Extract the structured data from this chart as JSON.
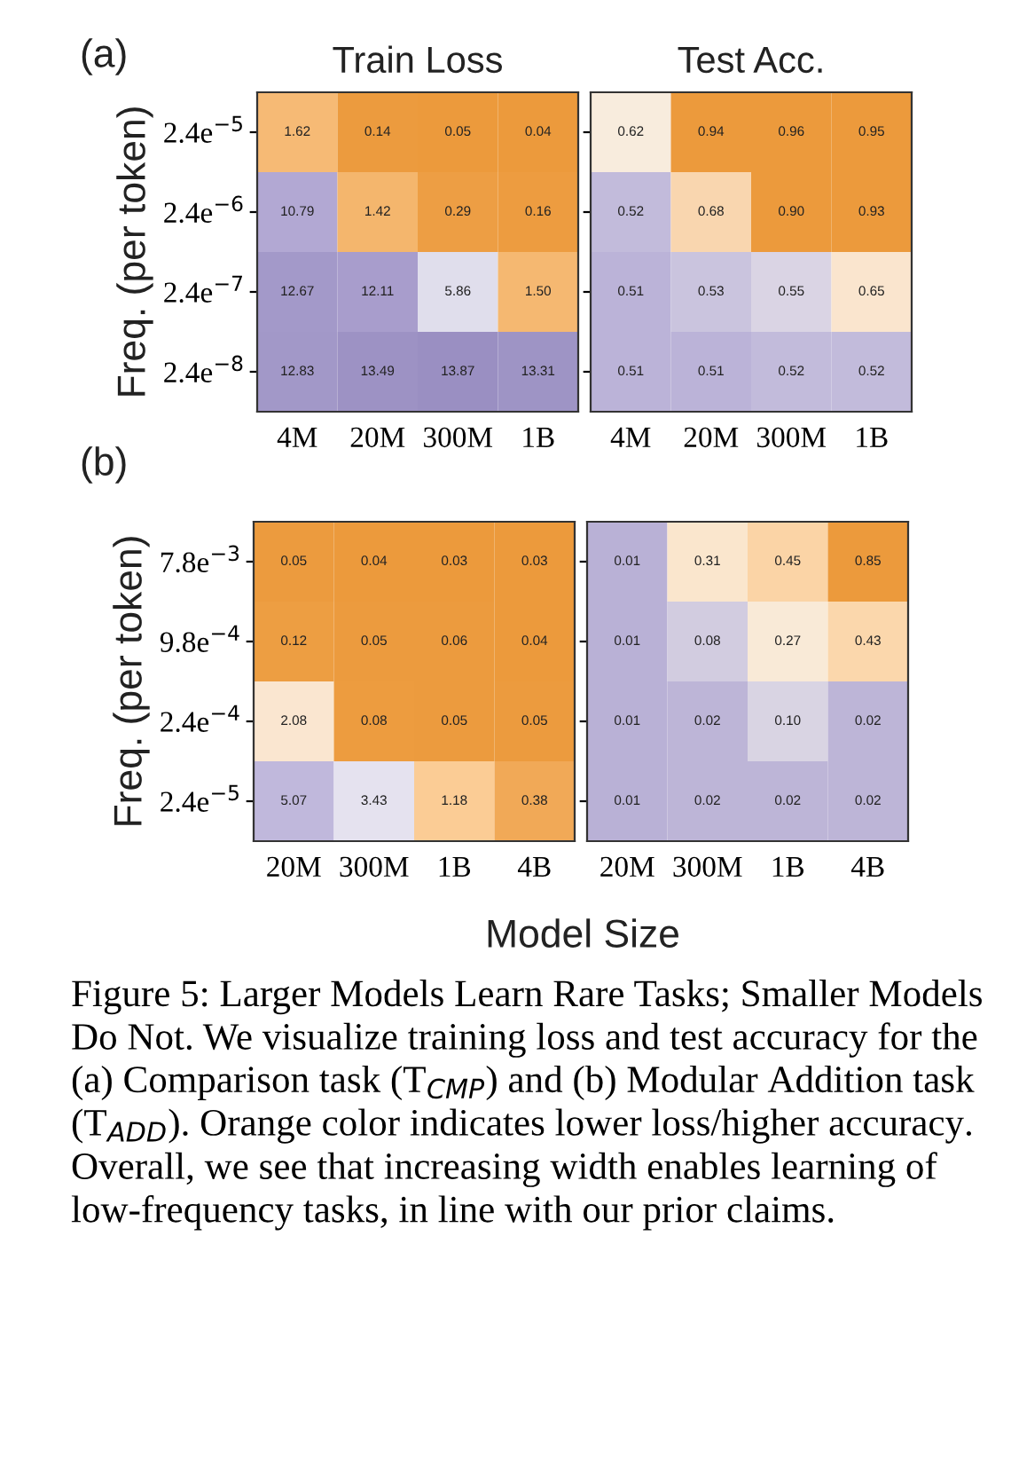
{
  "chart_data": [
    {
      "type": "heatmap",
      "title": "Train Loss",
      "ylabel": "Freq. (per token)",
      "annotations": [
        "(a)"
      ],
      "categories": [
        "4M",
        "20M",
        "300M",
        "1B"
      ],
      "y_categories": [
        "2.4e$^{−5}$",
        "2.4e$^{−6}$",
        "2.4e$^{−7}$",
        "2.4e$^{−8}$"
      ],
      "cells": [
        [
          1.62,
          0.14,
          0.05,
          0.04
        ],
        [
          10.79,
          1.42,
          0.29,
          0.16
        ],
        [
          12.67,
          12.11,
          5.86,
          1.5
        ],
        [
          12.83,
          13.49,
          13.87,
          13.31
        ]
      ],
      "cell_labels": [
        [
          "1.62",
          "0.14",
          "0.05",
          "0.04"
        ],
        [
          "10.79",
          "1.42",
          "0.29",
          "0.16"
        ],
        [
          "12.67",
          "12.11",
          "5.86",
          "1.50"
        ],
        [
          "12.83",
          "13.49",
          "13.87",
          "13.31"
        ]
      ],
      "colors": [
        "#ec9a3c",
        "#fdd3a0",
        "#e4e2ee",
        "#c0b8dc",
        "#b0a6d2",
        "#9a8fc2"
      ]
    },
    {
      "type": "heatmap",
      "title": "Test Acc.",
      "tick_labels": "x",
      "categories": [
        "4M",
        "20M",
        "300M",
        "1B"
      ],
      "y_categories": [
        null,
        null,
        null,
        null
      ],
      "cells": [
        [
          0.62,
          0.94,
          0.96,
          0.95
        ],
        [
          0.52,
          0.68,
          0.9,
          0.93
        ],
        [
          0.51,
          0.53,
          0.55,
          0.65
        ],
        [
          0.51,
          0.51,
          0.52,
          0.52
        ]
      ],
      "cell_labels": [
        [
          "0.62",
          "0.94",
          "0.96",
          "0.95"
        ],
        [
          "0.52",
          "0.68",
          "0.90",
          "0.93"
        ],
        [
          "0.51",
          "0.53",
          "0.55",
          "0.65"
        ],
        [
          "0.51",
          "0.51",
          "0.52",
          "0.52"
        ]
      ],
      "colors": [
        "#bbb3d8",
        "#f6f3ef",
        "#fbe3c8",
        "#f3b266",
        "#ec9a3c",
        "#ec9a3c",
        "#ec9a3c"
      ]
    },
    {
      "type": "heatmap",
      "ylabel": "Freq. (per token)",
      "xlabel": "Model Size",
      "annotations": [
        "(b)"
      ],
      "categories": [
        "20M",
        "300M",
        "1B",
        "4B"
      ],
      "y_categories": [
        "7.8e$^{−3}$",
        "9.8e$^{−4}$",
        "2.4e$^{−4}$",
        "2.4e$^{−5}$"
      ],
      "cells": [
        [
          0.05,
          0.04,
          0.03,
          0.03
        ],
        [
          0.12,
          0.05,
          0.06,
          0.04
        ],
        [
          2.08,
          0.08,
          0.05,
          0.05
        ],
        [
          5.07,
          3.43,
          1.18,
          0.38
        ]
      ],
      "cell_labels": [
        [
          "0.05",
          "0.04",
          "0.03",
          "0.03"
        ],
        [
          "0.12",
          "0.05",
          "0.06",
          "0.04"
        ],
        [
          "2.08",
          "0.08",
          "0.05",
          "0.05"
        ],
        [
          "5.07",
          "3.43",
          "1.18",
          "0.38"
        ]
      ],
      "colors": [
        "#ec9a3c",
        "#fbc88c",
        "#fbe6cf",
        "#eceaf2",
        "#d8d4ea",
        "#c0b8dc"
      ]
    },
    {
      "type": "heatmap",
      "tick_labels": "x",
      "categories": [
        "20M",
        "300M",
        "1B",
        "4B"
      ],
      "y_categories": [
        null,
        null,
        null,
        null
      ],
      "cells": [
        [
          0.01,
          0.31,
          0.45,
          0.85
        ],
        [
          0.01,
          0.08,
          0.27,
          0.43
        ],
        [
          0.01,
          0.02,
          0.1,
          0.02
        ],
        [
          0.01,
          0.02,
          0.02,
          0.02
        ]
      ],
      "cell_labels": [
        [
          "0.01",
          "0.31",
          "0.45",
          "0.85"
        ],
        [
          "0.01",
          "0.08",
          "0.27",
          "0.43"
        ],
        [
          "0.01",
          "0.02",
          "0.10",
          "0.02"
        ],
        [
          "0.01",
          "0.02",
          "0.02",
          "0.02"
        ]
      ],
      "colors": [
        "#b9b1d6",
        "#f6f3ef",
        "#fbe2c4",
        "#fbcc94",
        "#f4b060",
        "#ec9a3c"
      ],
      "annotations": [
        "Figure 5: Larger Models Learn Rare Tasks; Smaller Models Do Not. We visualize training loss and test accuracy for the (a) Comparison task (T$_{CMP}$) and (b) Modular Addition task (T$_{ADD}$). Orange color indicates lower loss/higher accuracy. Overall, we see that increasing width enables learning of low-frequency tasks, in line with our prior claims."
      ]
    }
  ]
}
